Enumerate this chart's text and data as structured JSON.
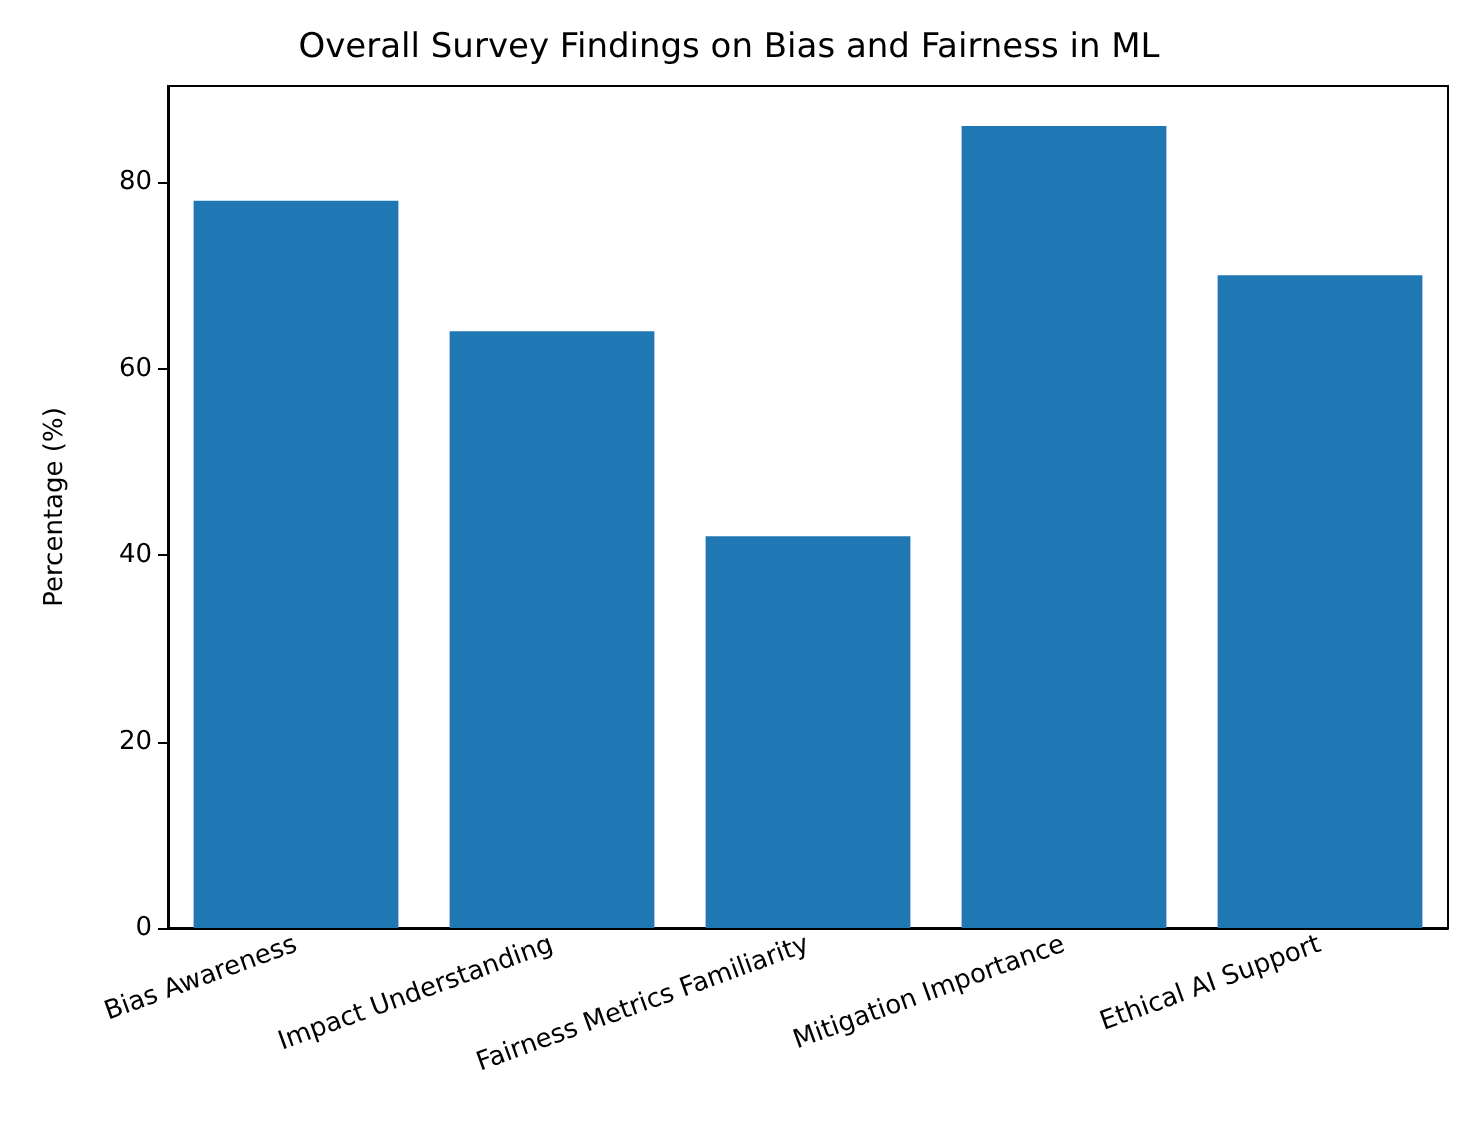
{
  "chart_data": {
    "type": "bar",
    "title": "Overall Survey Findings on Bias and Fairness in ML",
    "ylabel": "Percentage (%)",
    "categories": [
      "Bias Awareness",
      "Impact Understanding",
      "Fairness Metrics Familiarity",
      "Mitigation Importance",
      "Ethical AI Support"
    ],
    "values": [
      78,
      64,
      42,
      86,
      70
    ],
    "color": "#1f77b4",
    "ylim": [
      0,
      90.3
    ],
    "yticks": [
      0,
      20,
      40,
      60,
      80
    ],
    "grid": false
  }
}
